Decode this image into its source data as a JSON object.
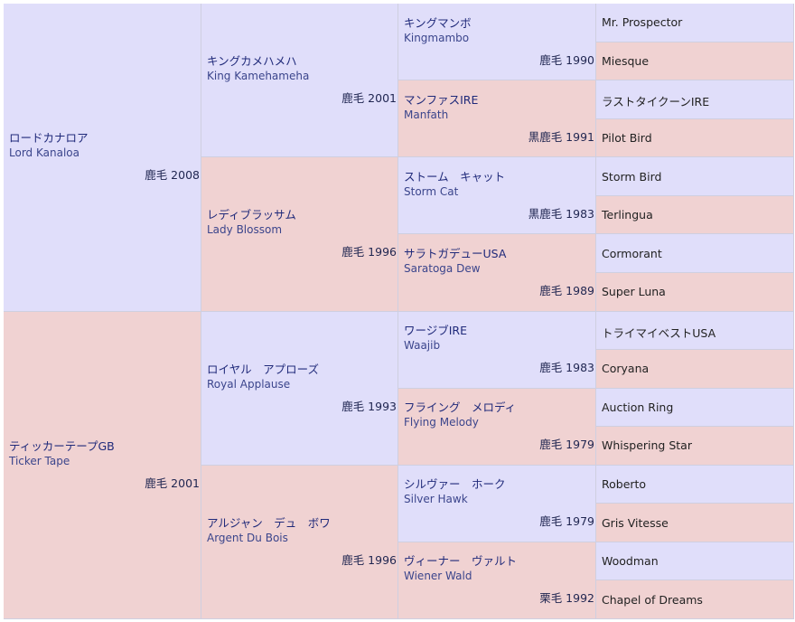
{
  "gen1": [
    {
      "ja": "ロードカナロア",
      "en": "Lord Kanaloa",
      "coat": "鹿毛 2008"
    },
    {
      "ja": "ティッカーテープGB",
      "en": "Ticker Tape",
      "coat": "鹿毛 2001"
    }
  ],
  "gen2": [
    {
      "ja": "キングカメハメハ",
      "en": "King Kamehameha",
      "coat": "鹿毛 2001"
    },
    {
      "ja": "レディブラッサム",
      "en": "Lady Blossom",
      "coat": "鹿毛 1996"
    },
    {
      "ja": "ロイヤル　アプローズ",
      "en": "Royal Applause",
      "coat": "鹿毛 1993"
    },
    {
      "ja": "アルジャン　デュ　ボワ",
      "en": "Argent Du Bois",
      "coat": "鹿毛 1996"
    }
  ],
  "gen3": [
    {
      "ja": "キングマンボ",
      "en": "Kingmambo",
      "coat": "鹿毛 1990"
    },
    {
      "ja": "マンファスIRE",
      "en": "Manfath",
      "coat": "黒鹿毛 1991"
    },
    {
      "ja": "ストーム　キャット",
      "en": "Storm Cat",
      "coat": "黒鹿毛 1983"
    },
    {
      "ja": "サラトガデューUSA",
      "en": "Saratoga Dew",
      "coat": "鹿毛 1989"
    },
    {
      "ja": "ワージブIRE",
      "en": "Waajib",
      "coat": "鹿毛 1983"
    },
    {
      "ja": "フライング　メロディ",
      "en": "Flying Melody",
      "coat": "鹿毛 1979"
    },
    {
      "ja": "シルヴァー　ホーク",
      "en": "Silver Hawk",
      "coat": "鹿毛 1979"
    },
    {
      "ja": "ヴィーナー　ヴァルト",
      "en": "Wiener Wald",
      "coat": "栗毛 1992"
    }
  ],
  "gen4": [
    "Mr. Prospector",
    "Miesque",
    "ラストタイクーンIRE",
    "Pilot Bird",
    "Storm Bird",
    "Terlingua",
    "Cormorant",
    "Super Luna",
    "トライマイベストUSA",
    "Coryana",
    "Auction Ring",
    "Whispering Star",
    "Roberto",
    "Gris Vitesse",
    "Woodman",
    "Chapel of Dreams"
  ],
  "colors": {
    "sire": "#e0defa",
    "dam": "#f0d2d2",
    "border": "#cfcfe0"
  }
}
